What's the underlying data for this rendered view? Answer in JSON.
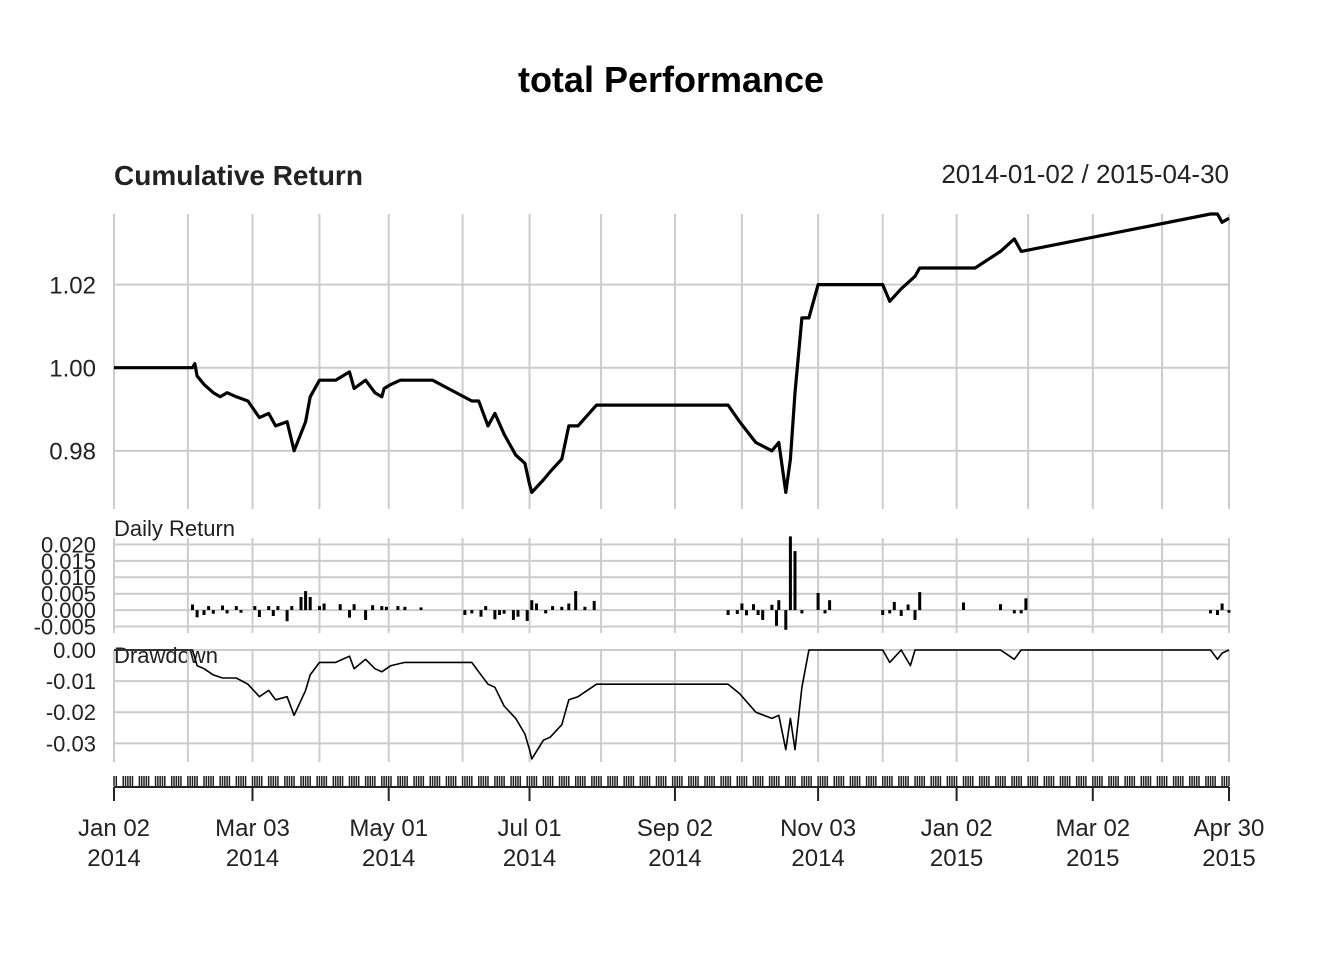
{
  "title": "total Performance",
  "date_range": "2014-01-02 / 2015-04-30",
  "colors": {
    "line": "#000000",
    "grid": "#cccccc",
    "text": "#222222"
  },
  "chart_data": [
    {
      "type": "line",
      "title": "Cumulative Return",
      "ylim": [
        0.966,
        1.037
      ],
      "yticks": [
        0.98,
        1.0,
        1.02
      ],
      "ytick_labels": [
        "0.98",
        "1.00",
        "1.02"
      ],
      "grid": true,
      "series": [
        {
          "x": [
            "2014-01-02",
            "2014-02-05",
            "2014-02-06",
            "2014-02-07",
            "2014-02-10",
            "2014-02-14",
            "2014-02-17",
            "2014-02-20",
            "2014-02-24",
            "2014-03-01",
            "2014-03-06",
            "2014-03-10",
            "2014-03-13",
            "2014-03-18",
            "2014-03-21",
            "2014-03-26",
            "2014-03-28",
            "2014-04-01",
            "2014-04-08",
            "2014-04-14",
            "2014-04-16",
            "2014-04-21",
            "2014-04-25",
            "2014-04-28",
            "2014-04-29",
            "2014-05-02",
            "2014-05-06",
            "2014-05-08",
            "2014-05-12",
            "2014-05-15",
            "2014-05-20",
            "2014-06-06",
            "2014-06-09",
            "2014-06-13",
            "2014-06-16",
            "2014-06-20",
            "2014-06-25",
            "2014-06-29",
            "2014-07-01",
            "2014-07-02",
            "2014-07-07",
            "2014-07-10",
            "2014-07-15",
            "2014-07-18",
            "2014-07-22",
            "2014-07-30",
            "2014-09-25",
            "2014-09-30",
            "2014-10-07",
            "2014-10-14",
            "2014-10-17",
            "2014-10-20",
            "2014-10-22",
            "2014-10-24",
            "2014-10-27",
            "2014-10-30",
            "2014-11-03",
            "2014-12-01",
            "2014-12-04",
            "2014-12-09",
            "2014-12-15",
            "2014-12-17",
            "2014-12-31",
            "2015-01-10",
            "2015-01-21",
            "2015-01-27",
            "2015-01-30",
            "2015-04-22",
            "2015-04-25",
            "2015-04-27",
            "2015-04-30"
          ],
          "y": [
            1.0,
            1.0,
            1.001,
            0.998,
            0.996,
            0.994,
            0.993,
            0.994,
            0.993,
            0.992,
            0.988,
            0.989,
            0.986,
            0.987,
            0.98,
            0.987,
            0.993,
            0.997,
            0.997,
            0.999,
            0.995,
            0.997,
            0.994,
            0.993,
            0.995,
            0.996,
            0.997,
            0.997,
            0.997,
            0.997,
            0.997,
            0.992,
            0.992,
            0.986,
            0.989,
            0.984,
            0.979,
            0.977,
            0.972,
            0.97,
            0.973,
            0.975,
            0.978,
            0.986,
            0.986,
            0.991,
            0.991,
            0.987,
            0.982,
            0.98,
            0.982,
            0.97,
            0.978,
            0.994,
            1.012,
            1.012,
            1.02,
            1.02,
            1.016,
            1.019,
            1.022,
            1.024,
            1.024,
            1.024,
            1.028,
            1.031,
            1.028,
            1.037,
            1.037,
            1.035,
            1.036
          ]
        }
      ]
    },
    {
      "type": "bar",
      "title": "Daily Return",
      "ylim": [
        -0.007,
        0.022
      ],
      "yticks": [
        -0.005,
        0.0,
        0.005,
        0.01,
        0.015,
        0.02
      ],
      "ytick_labels": [
        "-0.005",
        "0.000",
        "0.005",
        "0.010",
        "0.015",
        "0.020"
      ],
      "grid": true,
      "series": [
        {
          "x": [
            "2014-02-05",
            "2014-02-07",
            "2014-02-10",
            "2014-02-12",
            "2014-02-14",
            "2014-02-18",
            "2014-02-20",
            "2014-02-24",
            "2014-02-26",
            "2014-03-04",
            "2014-03-06",
            "2014-03-10",
            "2014-03-12",
            "2014-03-14",
            "2014-03-18",
            "2014-03-20",
            "2014-03-24",
            "2014-03-26",
            "2014-03-28",
            "2014-04-01",
            "2014-04-03",
            "2014-04-10",
            "2014-04-14",
            "2014-04-16",
            "2014-04-21",
            "2014-04-24",
            "2014-04-28",
            "2014-04-30",
            "2014-05-05",
            "2014-05-08",
            "2014-05-15",
            "2014-06-03",
            "2014-06-06",
            "2014-06-10",
            "2014-06-12",
            "2014-06-16",
            "2014-06-18",
            "2014-06-20",
            "2014-06-24",
            "2014-06-26",
            "2014-06-30",
            "2014-07-02",
            "2014-07-04",
            "2014-07-08",
            "2014-07-11",
            "2014-07-15",
            "2014-07-18",
            "2014-07-21",
            "2014-07-25",
            "2014-07-29",
            "2014-09-25",
            "2014-09-29",
            "2014-10-01",
            "2014-10-03",
            "2014-10-06",
            "2014-10-08",
            "2014-10-10",
            "2014-10-14",
            "2014-10-16",
            "2014-10-17",
            "2014-10-20",
            "2014-10-22",
            "2014-10-24",
            "2014-10-27",
            "2014-11-03",
            "2014-11-06",
            "2014-11-08",
            "2014-12-01",
            "2014-12-04",
            "2014-12-06",
            "2014-12-09",
            "2014-12-12",
            "2014-12-15",
            "2014-12-17",
            "2015-01-05",
            "2015-01-21",
            "2015-01-27",
            "2015-01-30",
            "2015-02-01",
            "2015-04-22",
            "2015-04-25",
            "2015-04-27",
            "2015-04-30"
          ],
          "values": [
            0.0017,
            -0.0022,
            -0.0015,
            0.0012,
            -0.0011,
            0.0014,
            -0.001,
            0.0012,
            -0.0008,
            0.0012,
            -0.0021,
            0.0012,
            -0.0018,
            0.0012,
            -0.0034,
            0.0012,
            0.004,
            0.0058,
            0.004,
            0.0012,
            0.002,
            0.0018,
            -0.0023,
            0.0018,
            -0.003,
            0.0015,
            0.0012,
            0.001,
            0.0012,
            0.001,
            0.0008,
            -0.0015,
            -0.001,
            -0.002,
            0.0012,
            -0.0028,
            -0.0015,
            -0.0011,
            -0.003,
            -0.002,
            -0.0033,
            0.003,
            0.002,
            -0.001,
            0.0012,
            0.001,
            0.002,
            0.0058,
            0.001,
            0.0028,
            -0.0015,
            -0.0012,
            0.002,
            -0.0016,
            0.0018,
            -0.0015,
            -0.003,
            0.0016,
            -0.0048,
            0.003,
            -0.006,
            0.0225,
            0.018,
            -0.001,
            0.0052,
            -0.001,
            0.003,
            -0.0015,
            -0.001,
            0.0025,
            -0.0018,
            0.0017,
            -0.003,
            0.0055,
            0.0023,
            0.0018,
            -0.001,
            -0.001,
            0.0036,
            -0.001,
            -0.0015,
            0.002,
            -0.0008
          ]
        }
      ]
    },
    {
      "type": "line",
      "title": "Drawdown",
      "ylim": [
        -0.036,
        0.0
      ],
      "yticks": [
        -0.03,
        -0.02,
        -0.01,
        0.0
      ],
      "ytick_labels": [
        "-0.03",
        "-0.02",
        "-0.01",
        "0.00"
      ],
      "grid": true,
      "series": [
        {
          "x": [
            "2014-01-02",
            "2014-02-05",
            "2014-02-07",
            "2014-02-10",
            "2014-02-14",
            "2014-02-18",
            "2014-02-24",
            "2014-03-01",
            "2014-03-06",
            "2014-03-10",
            "2014-03-13",
            "2014-03-18",
            "2014-03-21",
            "2014-03-26",
            "2014-03-28",
            "2014-04-01",
            "2014-04-08",
            "2014-04-14",
            "2014-04-16",
            "2014-04-21",
            "2014-04-25",
            "2014-04-28",
            "2014-05-02",
            "2014-05-08",
            "2014-05-15",
            "2014-05-20",
            "2014-06-06",
            "2014-06-09",
            "2014-06-13",
            "2014-06-16",
            "2014-06-20",
            "2014-06-25",
            "2014-06-29",
            "2014-07-01",
            "2014-07-02",
            "2014-07-07",
            "2014-07-10",
            "2014-07-15",
            "2014-07-18",
            "2014-07-22",
            "2014-07-30",
            "2014-09-25",
            "2014-09-30",
            "2014-10-07",
            "2014-10-14",
            "2014-10-17",
            "2014-10-20",
            "2014-10-22",
            "2014-10-24",
            "2014-10-27",
            "2014-10-30",
            "2014-11-03",
            "2014-12-01",
            "2014-12-04",
            "2014-12-09",
            "2014-12-13",
            "2014-12-15",
            "2014-12-17",
            "2015-01-21",
            "2015-01-27",
            "2015-01-30",
            "2015-04-22",
            "2015-04-25",
            "2015-04-27",
            "2015-04-30"
          ],
          "y": [
            0.0,
            0.0,
            -0.005,
            -0.006,
            -0.008,
            -0.009,
            -0.009,
            -0.011,
            -0.015,
            -0.013,
            -0.016,
            -0.015,
            -0.021,
            -0.013,
            -0.008,
            -0.004,
            -0.004,
            -0.002,
            -0.006,
            -0.003,
            -0.006,
            -0.007,
            -0.005,
            -0.004,
            -0.004,
            -0.004,
            -0.004,
            -0.007,
            -0.011,
            -0.012,
            -0.018,
            -0.022,
            -0.027,
            -0.032,
            -0.035,
            -0.029,
            -0.028,
            -0.024,
            -0.016,
            -0.015,
            -0.011,
            -0.011,
            -0.014,
            -0.02,
            -0.022,
            -0.021,
            -0.032,
            -0.022,
            -0.032,
            -0.012,
            0.0,
            0.0,
            0.0,
            -0.004,
            0.0,
            -0.005,
            0.0,
            0.0,
            0.0,
            -0.003,
            0.0,
            0.0,
            -0.003,
            -0.001,
            0.0
          ]
        }
      ]
    }
  ],
  "xaxis": {
    "start": "2014-01-02",
    "end": "2015-04-30",
    "ticks": [
      {
        "date": "2014-01-02",
        "line1": "Jan 02",
        "line2": "2014"
      },
      {
        "date": "2014-03-03",
        "line1": "Mar 03",
        "line2": "2014"
      },
      {
        "date": "2014-05-01",
        "line1": "May 01",
        "line2": "2014"
      },
      {
        "date": "2014-07-01",
        "line1": "Jul 01",
        "line2": "2014"
      },
      {
        "date": "2014-09-02",
        "line1": "Sep 02",
        "line2": "2014"
      },
      {
        "date": "2014-11-03",
        "line1": "Nov 03",
        "line2": "2014"
      },
      {
        "date": "2015-01-02",
        "line1": "Jan 02",
        "line2": "2015"
      },
      {
        "date": "2015-03-02",
        "line1": "Mar 02",
        "line2": "2015"
      },
      {
        "date": "2015-04-30",
        "line1": "Apr 30",
        "line2": "2015"
      }
    ],
    "grid_dates": [
      "2014-01-02",
      "2014-02-03",
      "2014-03-03",
      "2014-04-01",
      "2014-05-01",
      "2014-06-02",
      "2014-07-01",
      "2014-08-01",
      "2014-09-02",
      "2014-10-01",
      "2014-11-03",
      "2014-12-01",
      "2015-01-02",
      "2015-02-02",
      "2015-03-02",
      "2015-04-01",
      "2015-04-30"
    ]
  }
}
